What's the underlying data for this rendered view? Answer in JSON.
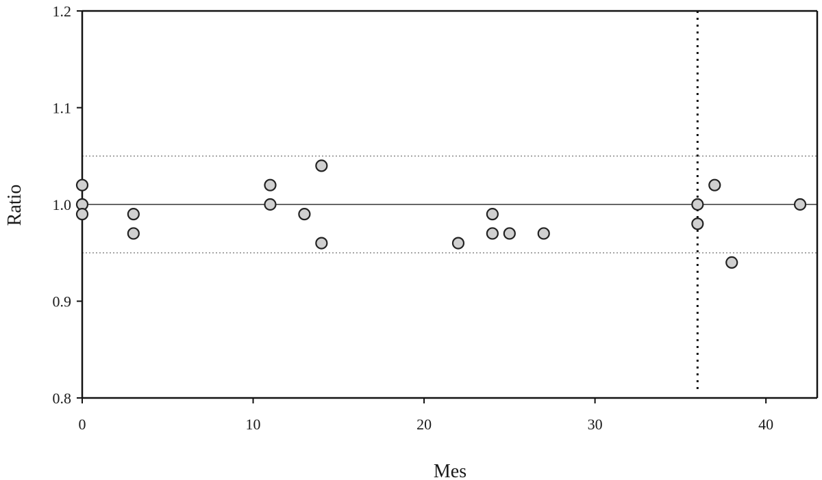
{
  "chart_data": {
    "type": "scatter",
    "title": "",
    "xlabel": "Mes",
    "ylabel": "Ratio",
    "xlim": [
      0,
      43
    ],
    "ylim": [
      0.8,
      1.2
    ],
    "xticks": [
      0,
      10,
      20,
      30,
      40
    ],
    "xtick_labels": [
      "0",
      "10",
      "20",
      "30",
      "40"
    ],
    "yticks": [
      0.8,
      0.9,
      1.0,
      1.1,
      1.2
    ],
    "ytick_labels": [
      "0.8",
      "0.9",
      "1.0",
      "1.1",
      "1.2"
    ],
    "grid": false,
    "reference_lines": {
      "horizontal_solid": 1.0,
      "horizontal_dotted": [
        1.05,
        0.95
      ],
      "vertical_dotted": 36
    },
    "marker_color": "#d0d0d0",
    "marker_edge_color": "#222222",
    "points": [
      {
        "x": 0,
        "y": 1.02
      },
      {
        "x": 0,
        "y": 1.0
      },
      {
        "x": 0,
        "y": 0.99
      },
      {
        "x": 3,
        "y": 0.99
      },
      {
        "x": 3,
        "y": 0.97
      },
      {
        "x": 11,
        "y": 1.02
      },
      {
        "x": 11,
        "y": 1.0
      },
      {
        "x": 13,
        "y": 0.99
      },
      {
        "x": 14,
        "y": 1.04
      },
      {
        "x": 14,
        "y": 0.96
      },
      {
        "x": 22,
        "y": 0.96
      },
      {
        "x": 24,
        "y": 0.99
      },
      {
        "x": 24,
        "y": 0.97
      },
      {
        "x": 25,
        "y": 0.97
      },
      {
        "x": 27,
        "y": 0.97
      },
      {
        "x": 36,
        "y": 1.0
      },
      {
        "x": 36,
        "y": 0.98
      },
      {
        "x": 37,
        "y": 1.02
      },
      {
        "x": 38,
        "y": 0.94
      },
      {
        "x": 42,
        "y": 1.0
      }
    ]
  }
}
